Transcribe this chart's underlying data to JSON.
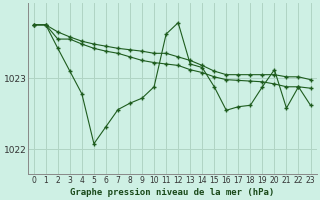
{
  "title": "Graphe pression niveau de la mer (hPa)",
  "background_color": "#cef0e4",
  "line_color": "#1e5c1e",
  "grid_color": "#b0d4c4",
  "x_values": [
    0,
    1,
    2,
    3,
    4,
    5,
    6,
    7,
    8,
    9,
    10,
    11,
    12,
    13,
    14,
    15,
    16,
    17,
    18,
    19,
    20,
    21,
    22,
    23
  ],
  "line1": [
    1023.75,
    1023.75,
    1023.55,
    1023.55,
    1023.48,
    1023.42,
    1023.38,
    1023.35,
    1023.3,
    1023.25,
    1023.22,
    1023.2,
    1023.18,
    1023.12,
    1023.08,
    1023.02,
    1022.98,
    1022.97,
    1022.96,
    1022.95,
    1022.92,
    1022.88,
    1022.88,
    1022.86
  ],
  "line2": [
    1023.75,
    1023.75,
    1023.65,
    1023.58,
    1023.52,
    1023.48,
    1023.45,
    1023.42,
    1023.4,
    1023.38,
    1023.35,
    1023.35,
    1023.3,
    1023.25,
    1023.18,
    1023.1,
    1023.05,
    1023.05,
    1023.05,
    1023.05,
    1023.05,
    1023.02,
    1023.02,
    1022.98
  ],
  "line3": [
    1023.75,
    1023.75,
    1023.42,
    1023.1,
    1022.78,
    1022.08,
    1022.32,
    1022.56,
    1022.65,
    1022.72,
    1022.88,
    1023.62,
    1023.78,
    1023.2,
    1023.15,
    1022.88,
    1022.55,
    1022.6,
    1022.62,
    1022.88,
    1023.12,
    1022.58,
    1022.88,
    1022.62
  ],
  "ylim": [
    1021.65,
    1024.05
  ],
  "yticks": [
    1022,
    1023
  ],
  "xlim": [
    -0.5,
    23.5
  ],
  "xlabel_fontsize": 6.5,
  "tick_fontsize": 5.5,
  "ytick_fontsize": 6.5
}
